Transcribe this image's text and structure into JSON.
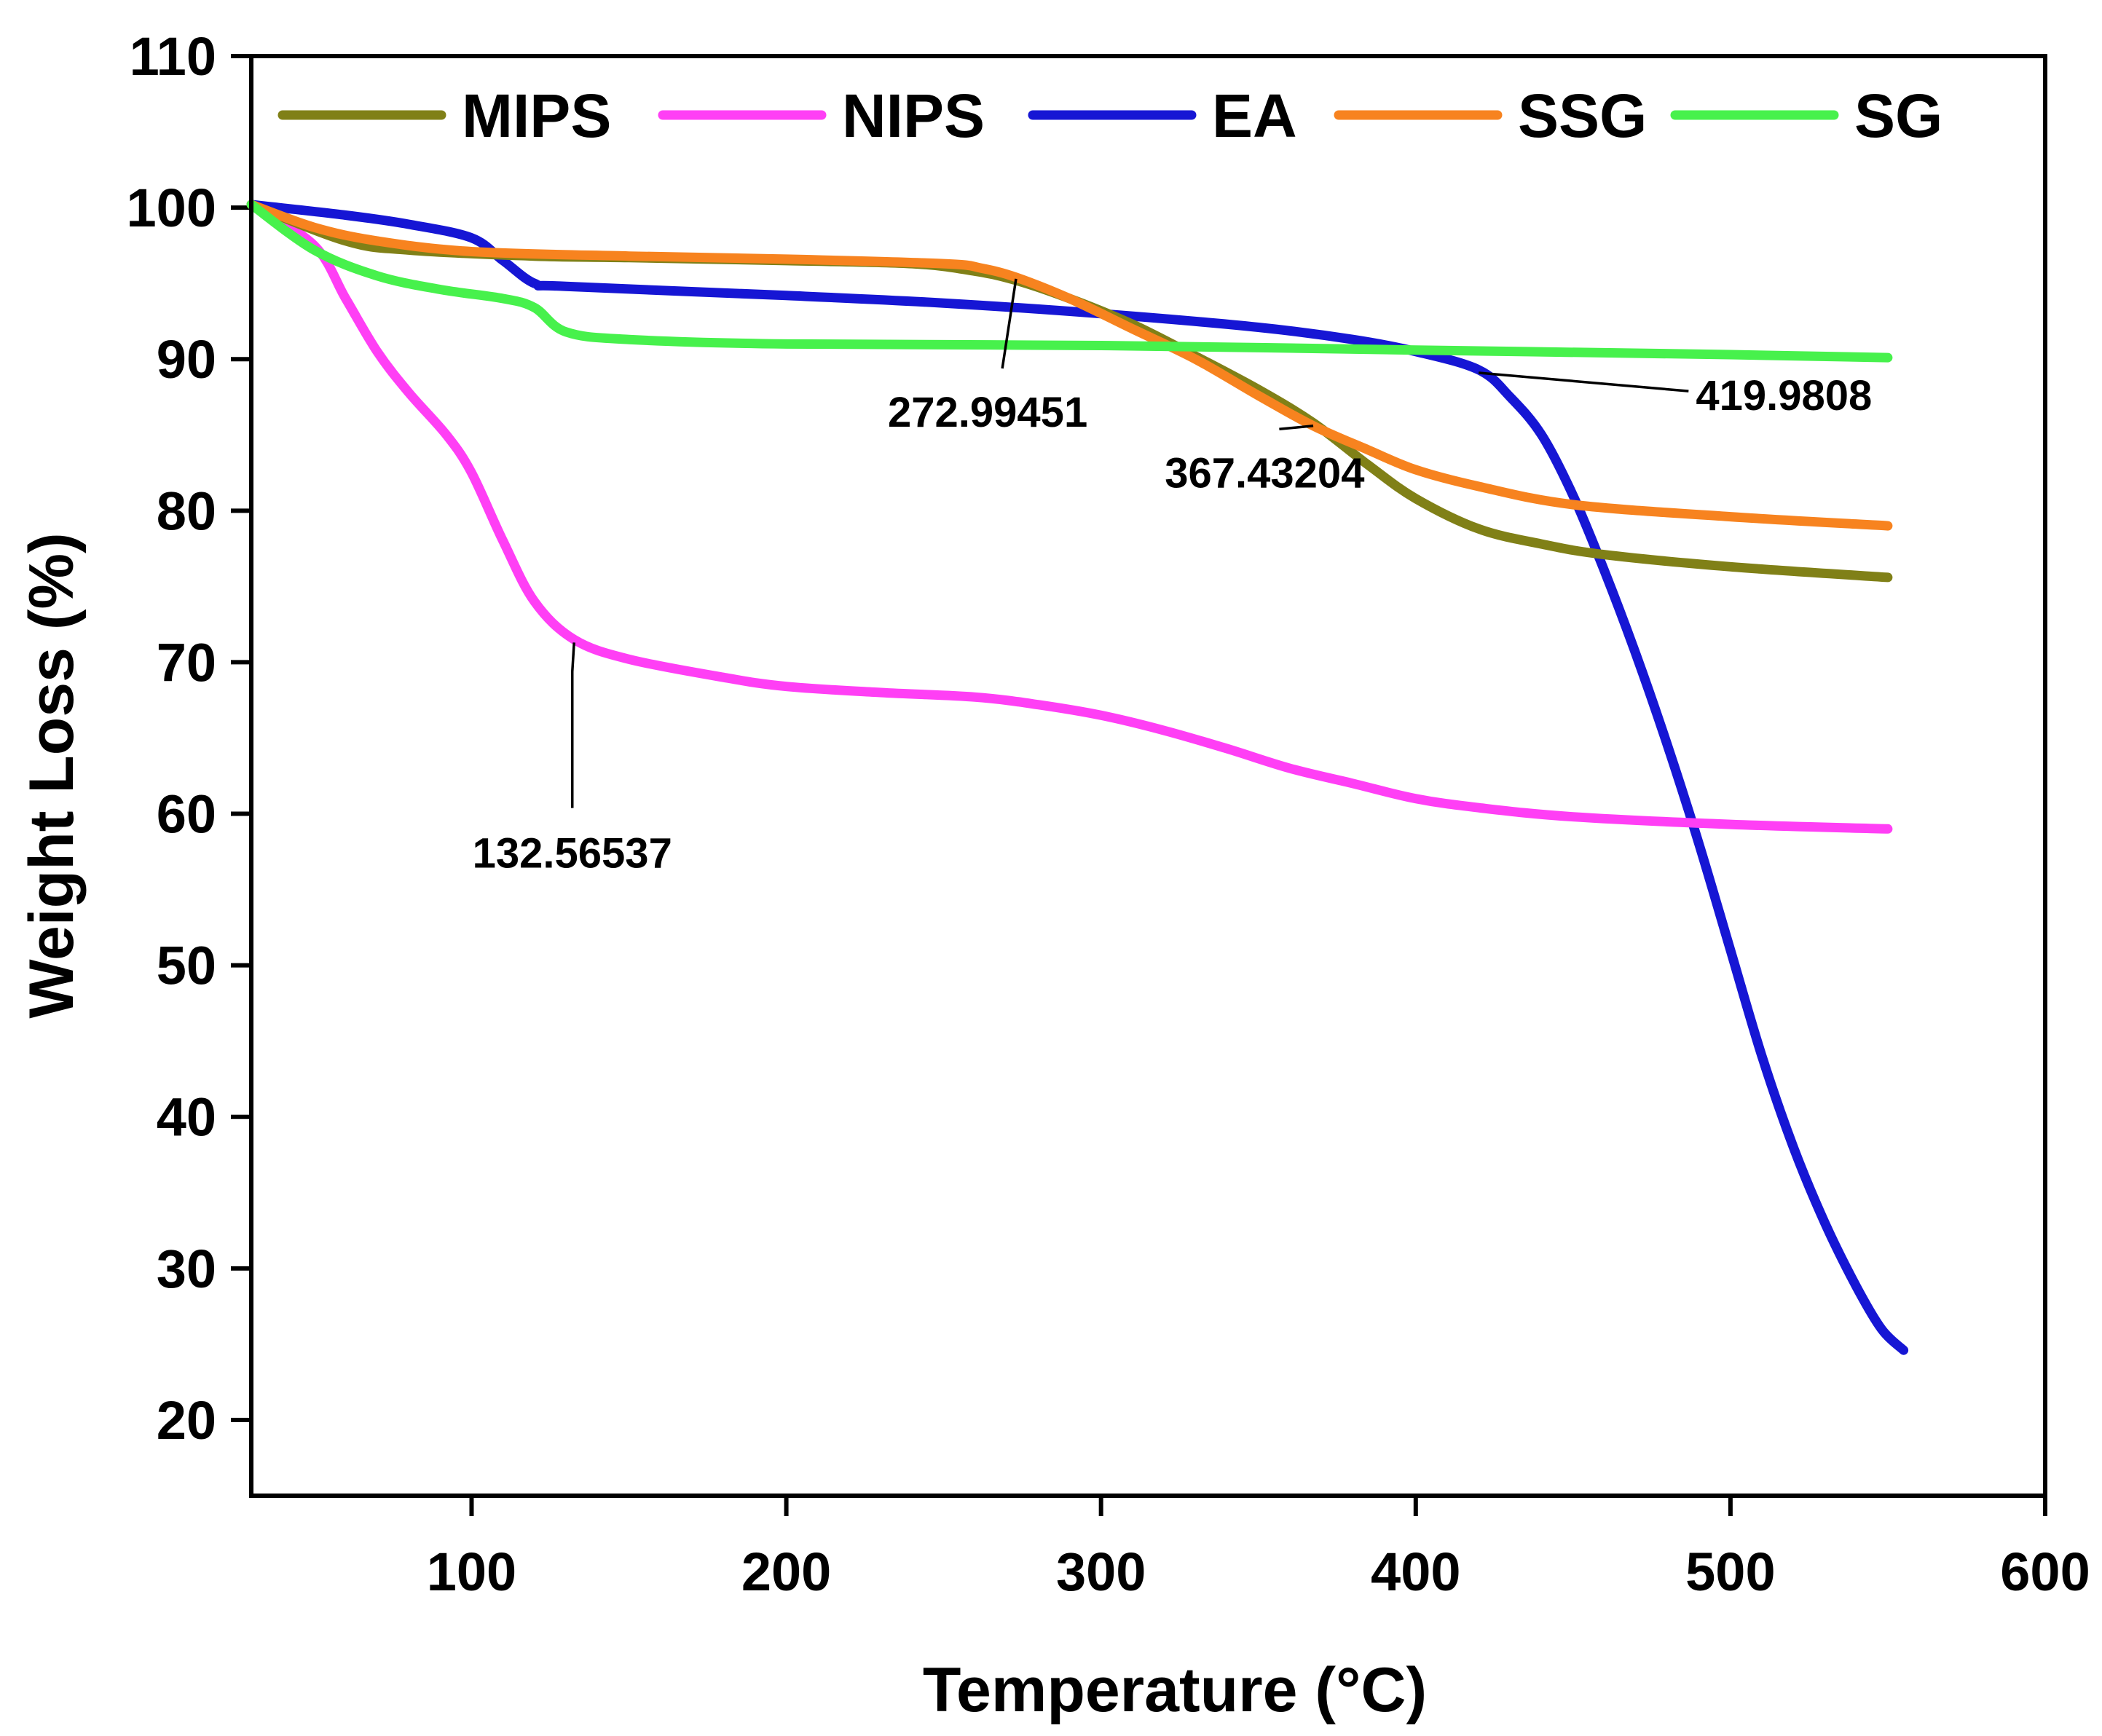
{
  "chart_data": {
    "type": "line",
    "title": "",
    "xlabel": "Temperature (°C)",
    "ylabel": "Weight Loss (%)",
    "xlim": [
      30,
      600
    ],
    "ylim": [
      15,
      110
    ],
    "xticks": [
      100,
      200,
      300,
      400,
      500,
      600
    ],
    "yticks": [
      20,
      30,
      40,
      50,
      60,
      70,
      80,
      90,
      100,
      110
    ],
    "legend_position": "top",
    "series": [
      {
        "name": "MIPS",
        "color": "#808017",
        "points": [
          [
            30,
            100.2
          ],
          [
            60,
            97.8
          ],
          [
            80,
            97.2
          ],
          [
            120,
            96.8
          ],
          [
            150,
            96.7
          ],
          [
            200,
            96.5
          ],
          [
            240,
            96.3
          ],
          [
            260,
            95.8
          ],
          [
            272.99,
            95.2
          ],
          [
            290,
            94
          ],
          [
            310,
            92.3
          ],
          [
            330,
            90.2
          ],
          [
            350,
            88
          ],
          [
            367.43,
            85.8
          ],
          [
            385,
            83
          ],
          [
            400,
            80.8
          ],
          [
            420,
            78.8
          ],
          [
            440,
            77.8
          ],
          [
            460,
            77.1
          ],
          [
            500,
            76.3
          ],
          [
            550,
            75.6
          ]
        ]
      },
      {
        "name": "NIPS",
        "color": "#ff3ff5",
        "points": [
          [
            30,
            100.2
          ],
          [
            50,
            97.5
          ],
          [
            60,
            94
          ],
          [
            70,
            90.5
          ],
          [
            80,
            87.8
          ],
          [
            92,
            85
          ],
          [
            100,
            82.5
          ],
          [
            110,
            78
          ],
          [
            120,
            74
          ],
          [
            132.57,
            71.5
          ],
          [
            150,
            70.2
          ],
          [
            180,
            69
          ],
          [
            200,
            68.4
          ],
          [
            230,
            68
          ],
          [
            260,
            67.7
          ],
          [
            280,
            67.2
          ],
          [
            300,
            66.5
          ],
          [
            320,
            65.5
          ],
          [
            340,
            64.3
          ],
          [
            360,
            63
          ],
          [
            380,
            62
          ],
          [
            400,
            61
          ],
          [
            420,
            60.4
          ],
          [
            450,
            59.8
          ],
          [
            500,
            59.3
          ],
          [
            550,
            59
          ]
        ]
      },
      {
        "name": "EA",
        "color": "#1616d4",
        "points": [
          [
            30,
            100.2
          ],
          [
            60,
            99.5
          ],
          [
            80,
            98.9
          ],
          [
            100,
            98
          ],
          [
            110,
            96.5
          ],
          [
            120,
            95
          ],
          [
            130,
            94.8
          ],
          [
            200,
            94.2
          ],
          [
            250,
            93.7
          ],
          [
            300,
            93
          ],
          [
            350,
            92.1
          ],
          [
            380,
            91.3
          ],
          [
            400,
            90.5
          ],
          [
            419.98,
            89.3
          ],
          [
            430,
            87.5
          ],
          [
            440,
            85
          ],
          [
            450,
            81
          ],
          [
            460,
            76
          ],
          [
            470,
            70.5
          ],
          [
            480,
            64.5
          ],
          [
            490,
            58
          ],
          [
            500,
            51
          ],
          [
            510,
            44
          ],
          [
            520,
            38
          ],
          [
            530,
            33
          ],
          [
            540,
            28.8
          ],
          [
            548,
            26
          ],
          [
            555,
            24.6
          ]
        ]
      },
      {
        "name": "SSG",
        "color": "#f7831f",
        "points": [
          [
            30,
            100.2
          ],
          [
            50,
            98.7
          ],
          [
            70,
            97.8
          ],
          [
            100,
            97.1
          ],
          [
            150,
            96.8
          ],
          [
            200,
            96.6
          ],
          [
            250,
            96.3
          ],
          [
            262,
            96
          ],
          [
            272.99,
            95.4
          ],
          [
            290,
            94
          ],
          [
            310,
            92
          ],
          [
            330,
            90
          ],
          [
            350,
            87.6
          ],
          [
            367.43,
            85.6
          ],
          [
            385,
            84
          ],
          [
            400,
            82.7
          ],
          [
            420,
            81.6
          ],
          [
            450,
            80.4
          ],
          [
            500,
            79.6
          ],
          [
            550,
            79
          ]
        ]
      },
      {
        "name": "SG",
        "color": "#47f14c",
        "points": [
          [
            30,
            100.2
          ],
          [
            50,
            97.2
          ],
          [
            70,
            95.5
          ],
          [
            90,
            94.6
          ],
          [
            110,
            94
          ],
          [
            120,
            93.4
          ],
          [
            130,
            91.8
          ],
          [
            150,
            91.3
          ],
          [
            200,
            91
          ],
          [
            300,
            90.9
          ],
          [
            400,
            90.6
          ],
          [
            500,
            90.3
          ],
          [
            550,
            90.1
          ]
        ]
      }
    ],
    "annotations": [
      {
        "text": "132.56537",
        "series": "NIPS",
        "x": 132.57,
        "y": 71.3,
        "label_x": 132,
        "label_y": 57.4
      },
      {
        "text": "272.99451",
        "series": "SSG",
        "x": 272.99,
        "y": 95.3,
        "label_x": 264,
        "label_y": 86.5
      },
      {
        "text": "367.43204",
        "series": "MIPS",
        "x": 367.43,
        "y": 85.6,
        "label_x": 352,
        "label_y": 82.5
      },
      {
        "text": "419.9808",
        "series": "EA",
        "x": 419.98,
        "y": 89.1,
        "label_x": 489,
        "label_y": 87.6
      }
    ]
  }
}
